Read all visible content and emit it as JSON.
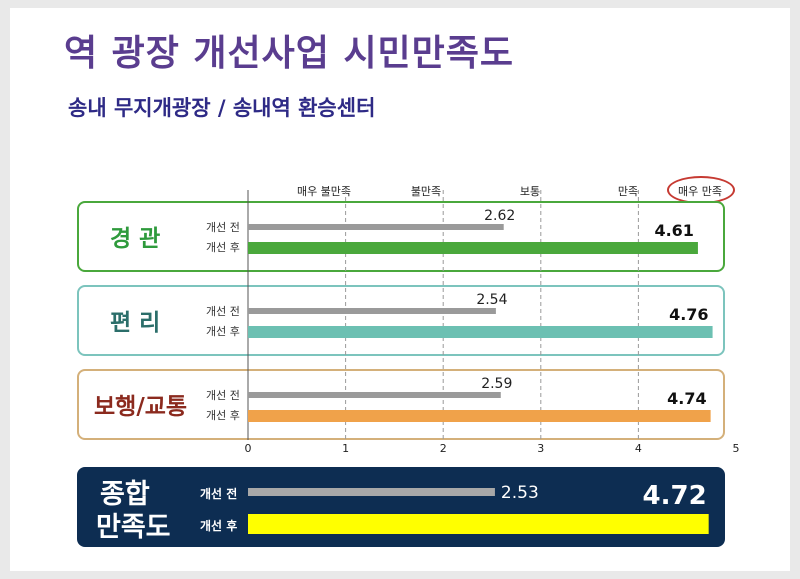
{
  "title": "역 광장 개선사업 시민만족도",
  "subtitle": "송내 무지개광장 / 송내역 환승센터",
  "chart_data": {
    "type": "bar",
    "orientation": "horizontal",
    "scale_labels": [
      "매우 불만족",
      "불만족",
      "보통",
      "만족",
      "매우 만족"
    ],
    "ticks": [
      "0",
      "1",
      "2",
      "3",
      "4",
      "5"
    ],
    "xlim": [
      0,
      5
    ],
    "series_labels": {
      "before": "개선 전",
      "after": "개선 후"
    },
    "categories": [
      {
        "label": "경 관",
        "before": 2.62,
        "after": 4.61,
        "before_text": "2.62",
        "after_text": "4.61",
        "color": "#4aa83c",
        "label_color": "#2e9a3c",
        "border": "#4aa83c"
      },
      {
        "label": "편 리",
        "before": 2.54,
        "after": 4.76,
        "before_text": "2.54",
        "after_text": "4.76",
        "color": "#6cc0b2",
        "label_color": "#2b6e6a",
        "border": "#7cc4bd"
      },
      {
        "label": "보행/교통",
        "before": 2.59,
        "after": 4.74,
        "before_text": "2.59",
        "after_text": "4.74",
        "color": "#f0a24a",
        "label_color": "#8b2a1e",
        "border": "#d4b07a"
      }
    ],
    "summary": {
      "label_line1": "종합",
      "label_line2": "만족도",
      "before": 2.53,
      "after": 4.72,
      "before_text": "2.53",
      "after_text": "4.72",
      "color": "#ffff00"
    },
    "before_color": "#9a9a9a",
    "grid": true
  }
}
